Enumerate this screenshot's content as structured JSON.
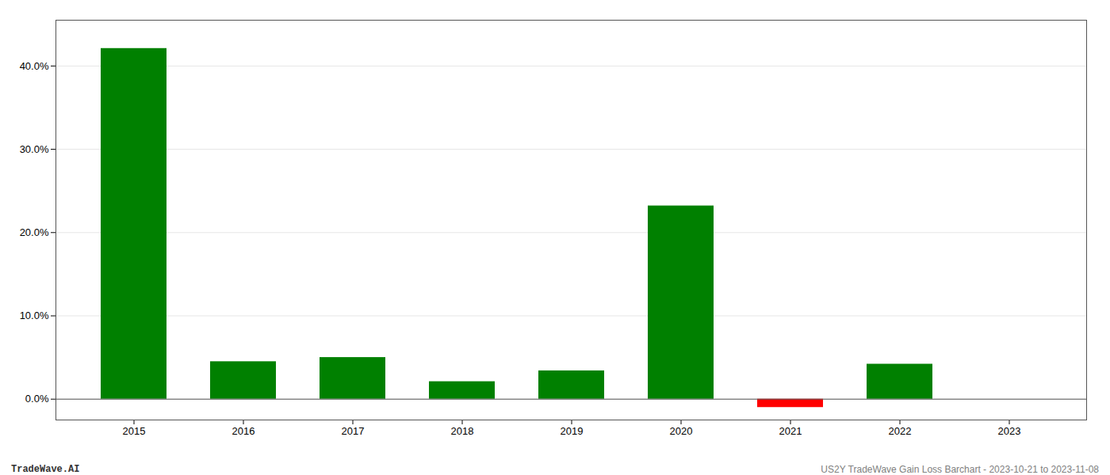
{
  "chart_data": {
    "type": "bar",
    "categories": [
      "2015",
      "2016",
      "2017",
      "2018",
      "2019",
      "2020",
      "2021",
      "2022",
      "2023"
    ],
    "values": [
      0.421,
      0.045,
      0.05,
      0.021,
      0.034,
      0.232,
      -0.01,
      0.042,
      0.0
    ],
    "colors": [
      "#008000",
      "#008000",
      "#008000",
      "#008000",
      "#008000",
      "#008000",
      "#ff0000",
      "#008000",
      "#008000"
    ],
    "ylim": [
      -0.025,
      0.455
    ],
    "yticks": [
      {
        "value": 0.0,
        "label": "0.0%"
      },
      {
        "value": 0.1,
        "label": "10.0%"
      },
      {
        "value": 0.2,
        "label": "20.0%"
      },
      {
        "value": 0.3,
        "label": "30.0%"
      },
      {
        "value": 0.4,
        "label": "40.0%"
      }
    ],
    "grid": true,
    "annotations": [
      "TradeWave.AI",
      "US2Y TradeWave Gain Loss Barchart - 2023-10-21 to 2023-11-08"
    ]
  }
}
